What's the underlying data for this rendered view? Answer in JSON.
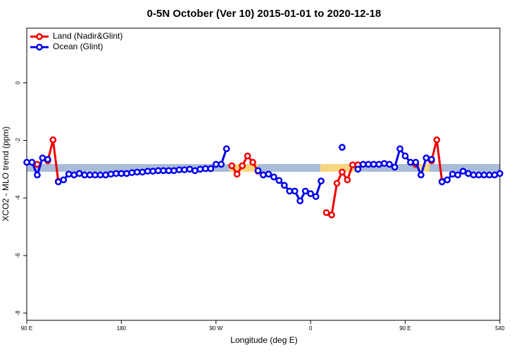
{
  "chart_data": {
    "type": "line",
    "title": "0-5N October (Ver 10)   2015-01-01 to 2020-12-18",
    "xlabel": "Longitude (deg E)",
    "ylabel": "XCO2 - MLO trend (ppm)",
    "x": [
      90,
      95,
      100,
      105,
      110,
      115,
      120,
      125,
      130,
      135,
      140,
      145,
      150,
      155,
      160,
      165,
      170,
      175,
      180,
      185,
      190,
      195,
      200,
      205,
      210,
      215,
      220,
      225,
      230,
      235,
      240,
      245,
      250,
      255,
      260,
      265,
      270,
      275,
      280,
      285,
      290,
      295,
      300,
      305,
      310,
      315,
      320,
      325,
      330,
      335,
      340,
      345,
      350,
      355,
      360,
      365,
      370,
      375,
      380,
      385,
      390,
      395,
      400,
      405,
      410,
      415,
      420,
      425,
      430,
      435,
      440,
      445,
      450,
      455,
      460,
      465,
      470,
      475,
      480,
      485,
      490,
      495,
      500,
      505,
      510,
      515,
      520,
      525,
      530,
      535,
      540
    ],
    "series": [
      {
        "name": "Land (Nadir&Glint)",
        "color": "#ee0000",
        "values": [
          null,
          null,
          -2.83,
          null,
          -2.71,
          -1.98,
          -3.42,
          null,
          null,
          null,
          null,
          null,
          null,
          null,
          null,
          null,
          null,
          null,
          null,
          null,
          null,
          null,
          null,
          null,
          null,
          null,
          null,
          null,
          null,
          null,
          null,
          null,
          null,
          null,
          null,
          null,
          null,
          null,
          null,
          -2.88,
          -3.17,
          -2.88,
          -2.54,
          -2.76,
          -3.07,
          null,
          null,
          null,
          null,
          null,
          null,
          null,
          null,
          null,
          null,
          null,
          null,
          -4.51,
          -4.59,
          -3.49,
          -3.1,
          -3.37,
          -2.85,
          -2.85,
          null,
          null,
          null,
          null,
          null,
          null,
          null,
          null,
          null,
          null,
          -2.83,
          null,
          -2.61,
          -2.71,
          -1.98,
          -3.42,
          null,
          null,
          null,
          null,
          null,
          null,
          null,
          null,
          null,
          null,
          null
        ]
      },
      {
        "name": "Ocean (Glint)",
        "color": "#0000ee",
        "values": [
          -2.76,
          -2.76,
          -3.2,
          -2.61,
          -2.66,
          null,
          -3.44,
          -3.37,
          -3.17,
          -3.2,
          -3.15,
          -3.2,
          -3.2,
          -3.2,
          -3.2,
          -3.2,
          -3.17,
          -3.15,
          -3.15,
          -3.15,
          -3.12,
          -3.1,
          -3.1,
          -3.07,
          -3.07,
          -3.05,
          -3.05,
          -3.05,
          -3.05,
          -3.02,
          -3.02,
          -3.0,
          -3.05,
          -3.0,
          -2.98,
          -2.98,
          -2.83,
          -2.83,
          -2.29,
          null,
          null,
          null,
          null,
          null,
          -3.05,
          -3.2,
          -3.17,
          -3.27,
          -3.39,
          -3.56,
          -3.76,
          -3.76,
          -4.1,
          -3.76,
          -3.85,
          -3.95,
          -3.41,
          null,
          null,
          null,
          -2.24,
          null,
          null,
          -3.0,
          -2.83,
          -2.83,
          -2.83,
          -2.83,
          -2.8,
          -2.83,
          -2.93,
          -2.29,
          -2.54,
          -2.76,
          -2.76,
          -3.2,
          -2.61,
          -2.66,
          null,
          -3.44,
          -3.37,
          -3.17,
          -3.2,
          -3.07,
          -3.15,
          -3.2,
          -3.2,
          -3.2,
          -3.2,
          -3.2,
          -3.15
        ]
      }
    ],
    "xlim": [
      90,
      540
    ],
    "xticks": [
      {
        "value": 90,
        "label": "90 E"
      },
      180,
      {
        "value": 270,
        "label": "90 W"
      },
      {
        "value": 360,
        "label": "0"
      },
      {
        "value": 450,
        "label": "90 E"
      },
      540
    ],
    "ylim": [
      -8.25,
      1.9
    ],
    "yticks": [
      -8,
      -6,
      -4,
      -2,
      0
    ],
    "legend": "top-left"
  }
}
